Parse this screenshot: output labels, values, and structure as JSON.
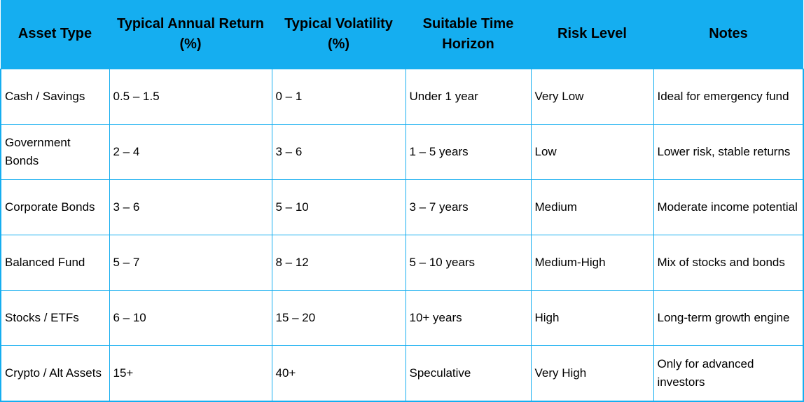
{
  "table": {
    "headers": [
      "Asset Type",
      "Typical Annual Return (%)",
      "Typical Volatility (%)",
      "Suitable Time Horizon",
      "Risk Level",
      "Notes"
    ],
    "rows": [
      [
        "Cash / Savings",
        "0.5 – 1.5",
        "0 – 1",
        "Under 1 year",
        "Very Low",
        "Ideal for emergency fund"
      ],
      [
        "Government Bonds",
        "2 – 4",
        "3 – 6",
        "1 – 5 years",
        "Low",
        "Lower risk, stable returns"
      ],
      [
        "Corporate Bonds",
        "3 – 6",
        "5 – 10",
        "3 – 7 years",
        "Medium",
        "Moderate income potential"
      ],
      [
        "Balanced Fund",
        "5 – 7",
        "8 – 12",
        "5 – 10 years",
        "Medium-High",
        "Mix of stocks and bonds"
      ],
      [
        "Stocks / ETFs",
        "6 – 10",
        "15 – 20",
        "10+ years",
        "High",
        "Long-term growth engine"
      ],
      [
        "Crypto / Alt Assets",
        "15+",
        "40+",
        "Speculative",
        "Very High",
        "Only for advanced investors"
      ]
    ]
  },
  "colors": {
    "header_bg": "#15aef0",
    "border": "#15aef0"
  }
}
